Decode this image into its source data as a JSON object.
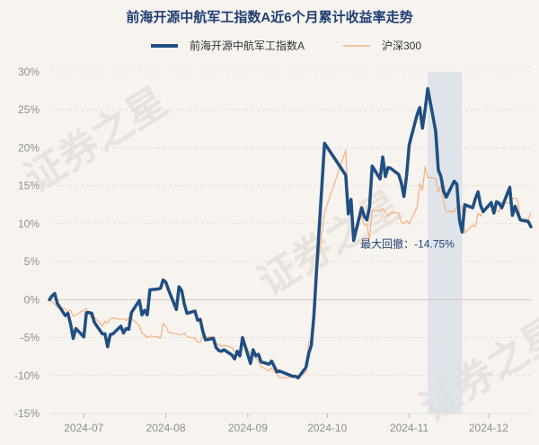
{
  "chart_data": {
    "type": "line",
    "title": "前海开源中航军工指数A近6个月累计收益率走势",
    "watermark": "证券之星",
    "colors": {
      "fund": "#1f4f82",
      "index": "#f4b183",
      "drawdown_band": "#d9e0e8",
      "grid": "#e6e0da",
      "zero_line": "#cfc8c0",
      "title": "#1f3f73",
      "tick": "#8f8f8f",
      "background": "#f7f3ef"
    },
    "legend": {
      "position": "top-center",
      "items": [
        "前海开源中航军工指数A",
        "沪深300"
      ]
    },
    "x_ticks": [
      "2024-07",
      "2024-08",
      "2024-09",
      "2024-10",
      "2024-11",
      "2024-12"
    ],
    "y_ticks": [
      "30%",
      "25%",
      "20%",
      "15%",
      "10%",
      "5%",
      "0%",
      "-5%",
      "-10%",
      "-15%"
    ],
    "ylim": [
      -15,
      30
    ],
    "y_unit": "%",
    "grid": "horizontal-dashed",
    "x_range": [
      "2024-06-18",
      "2024-12-17"
    ],
    "series": [
      {
        "name": "前海开源中航军工指数A",
        "points": [
          [
            "2024-06-18",
            0.0
          ],
          [
            "2024-06-19",
            0.5
          ],
          [
            "2024-06-20",
            0.8
          ],
          [
            "2024-06-21",
            -0.5
          ],
          [
            "2024-06-24",
            -2.1
          ],
          [
            "2024-06-25",
            -1.8
          ],
          [
            "2024-06-26",
            -3.2
          ],
          [
            "2024-06-27",
            -5.1
          ],
          [
            "2024-06-28",
            -3.8
          ],
          [
            "2024-07-01",
            -4.9
          ],
          [
            "2024-07-02",
            -1.7
          ],
          [
            "2024-07-03",
            -1.7
          ],
          [
            "2024-07-04",
            -1.8
          ],
          [
            "2024-07-05",
            -3.0
          ],
          [
            "2024-07-08",
            -4.5
          ],
          [
            "2024-07-09",
            -4.5
          ],
          [
            "2024-07-10",
            -6.2
          ],
          [
            "2024-07-11",
            -4.6
          ],
          [
            "2024-07-12",
            -4.5
          ],
          [
            "2024-07-15",
            -3.5
          ],
          [
            "2024-07-16",
            -4.4
          ],
          [
            "2024-07-17",
            -3.8
          ],
          [
            "2024-07-18",
            -3.9
          ],
          [
            "2024-07-19",
            -1.7
          ],
          [
            "2024-07-22",
            -0.1
          ],
          [
            "2024-07-23",
            -2.0
          ],
          [
            "2024-07-24",
            -1.4
          ],
          [
            "2024-07-25",
            -2.0
          ],
          [
            "2024-07-26",
            1.3
          ],
          [
            "2024-07-29",
            1.4
          ],
          [
            "2024-07-30",
            1.5
          ],
          [
            "2024-07-31",
            2.6
          ],
          [
            "2024-08-01",
            2.3
          ],
          [
            "2024-08-02",
            1.3
          ],
          [
            "2024-08-05",
            -1.3
          ],
          [
            "2024-08-06",
            1.7
          ],
          [
            "2024-08-07",
            1.2
          ],
          [
            "2024-08-08",
            -0.6
          ],
          [
            "2024-08-09",
            -1.8
          ],
          [
            "2024-08-12",
            -1.5
          ],
          [
            "2024-08-13",
            -2.7
          ],
          [
            "2024-08-14",
            -2.6
          ],
          [
            "2024-08-15",
            -4.2
          ],
          [
            "2024-08-16",
            -5.3
          ],
          [
            "2024-08-19",
            -5.1
          ],
          [
            "2024-08-20",
            -6.3
          ],
          [
            "2024-08-21",
            -6.7
          ],
          [
            "2024-08-22",
            -6.8
          ],
          [
            "2024-08-23",
            -6.6
          ],
          [
            "2024-08-26",
            -7.3
          ],
          [
            "2024-08-27",
            -7.8
          ],
          [
            "2024-08-28",
            -6.8
          ],
          [
            "2024-08-29",
            -7.4
          ],
          [
            "2024-08-30",
            -5.0
          ],
          [
            "2024-09-02",
            -8.4
          ],
          [
            "2024-09-03",
            -6.6
          ],
          [
            "2024-09-04",
            -7.4
          ],
          [
            "2024-09-05",
            -7.2
          ],
          [
            "2024-09-06",
            -8.2
          ],
          [
            "2024-09-09",
            -8.5
          ],
          [
            "2024-09-10",
            -8.1
          ],
          [
            "2024-09-11",
            -8.8
          ],
          [
            "2024-09-12",
            -9.5
          ],
          [
            "2024-09-13",
            -9.4
          ],
          [
            "2024-09-18",
            -10.1
          ],
          [
            "2024-09-19",
            -10.1
          ],
          [
            "2024-09-20",
            -10.3
          ],
          [
            "2024-09-23",
            -8.9
          ],
          [
            "2024-09-24",
            -7.1
          ],
          [
            "2024-09-25",
            -6.0
          ],
          [
            "2024-09-26",
            -2.0
          ],
          [
            "2024-09-27",
            4.0
          ],
          [
            "2024-09-30",
            20.6
          ],
          [
            "2024-10-08",
            16.4
          ],
          [
            "2024-10-09",
            11.3
          ],
          [
            "2024-10-10",
            13.2
          ],
          [
            "2024-10-11",
            7.8
          ],
          [
            "2024-10-14",
            12.1
          ],
          [
            "2024-10-15",
            11.0
          ],
          [
            "2024-10-16",
            10.5
          ],
          [
            "2024-10-17",
            12.2
          ],
          [
            "2024-10-18",
            17.6
          ],
          [
            "2024-10-21",
            15.9
          ],
          [
            "2024-10-22",
            18.8
          ],
          [
            "2024-10-23",
            16.2
          ],
          [
            "2024-10-24",
            17.4
          ],
          [
            "2024-10-25",
            17.3
          ],
          [
            "2024-10-28",
            16.5
          ],
          [
            "2024-10-29",
            15.4
          ],
          [
            "2024-10-30",
            13.6
          ],
          [
            "2024-10-31",
            16.3
          ],
          [
            "2024-11-01",
            20.4
          ],
          [
            "2024-11-04",
            24.4
          ],
          [
            "2024-11-05",
            25.3
          ],
          [
            "2024-11-06",
            22.6
          ],
          [
            "2024-11-07",
            25.0
          ],
          [
            "2024-11-08",
            27.8
          ],
          [
            "2024-11-11",
            22.2
          ],
          [
            "2024-11-12",
            17.1
          ],
          [
            "2024-11-13",
            16.2
          ],
          [
            "2024-11-14",
            14.3
          ],
          [
            "2024-11-15",
            13.5
          ],
          [
            "2024-11-18",
            15.6
          ],
          [
            "2024-11-19",
            15.2
          ],
          [
            "2024-11-20",
            10.5
          ],
          [
            "2024-11-21",
            8.9
          ],
          [
            "2024-11-22",
            12.5
          ],
          [
            "2024-11-25",
            12.1
          ],
          [
            "2024-11-26",
            13.3
          ],
          [
            "2024-11-27",
            14.2
          ],
          [
            "2024-11-28",
            12.4
          ],
          [
            "2024-11-29",
            11.6
          ],
          [
            "2024-12-02",
            12.8
          ],
          [
            "2024-12-03",
            11.4
          ],
          [
            "2024-12-04",
            12.9
          ],
          [
            "2024-12-05",
            12.7
          ],
          [
            "2024-12-06",
            12.1
          ],
          [
            "2024-12-09",
            14.8
          ],
          [
            "2024-12-10",
            11.1
          ],
          [
            "2024-12-11",
            12.3
          ],
          [
            "2024-12-12",
            11.4
          ],
          [
            "2024-12-13",
            10.5
          ],
          [
            "2024-12-16",
            10.3
          ],
          [
            "2024-12-17",
            9.6
          ]
        ]
      },
      {
        "name": "沪深300",
        "points": [
          [
            "2024-06-18",
            0.0
          ],
          [
            "2024-06-19",
            -0.3
          ],
          [
            "2024-06-20",
            -0.6
          ],
          [
            "2024-06-21",
            -1.0
          ],
          [
            "2024-06-24",
            -1.2
          ],
          [
            "2024-06-25",
            -1.6
          ],
          [
            "2024-06-26",
            -1.4
          ],
          [
            "2024-06-27",
            -2.2
          ],
          [
            "2024-06-28",
            -2.0
          ],
          [
            "2024-07-01",
            -1.4
          ],
          [
            "2024-07-02",
            -1.2
          ],
          [
            "2024-07-03",
            -1.8
          ],
          [
            "2024-07-04",
            -2.4
          ],
          [
            "2024-07-05",
            -2.3
          ],
          [
            "2024-07-08",
            -3.5
          ],
          [
            "2024-07-09",
            -2.8
          ],
          [
            "2024-07-10",
            -3.1
          ],
          [
            "2024-07-11",
            -2.5
          ],
          [
            "2024-07-12",
            -2.4
          ],
          [
            "2024-07-15",
            -2.6
          ],
          [
            "2024-07-16",
            -2.5
          ],
          [
            "2024-07-17",
            -2.8
          ],
          [
            "2024-07-18",
            -2.3
          ],
          [
            "2024-07-19",
            -2.5
          ],
          [
            "2024-07-22",
            -3.4
          ],
          [
            "2024-07-23",
            -4.4
          ],
          [
            "2024-07-24",
            -4.6
          ],
          [
            "2024-07-25",
            -5.0
          ],
          [
            "2024-07-26",
            -4.8
          ],
          [
            "2024-07-29",
            -4.9
          ],
          [
            "2024-07-30",
            -5.1
          ],
          [
            "2024-07-31",
            -3.1
          ],
          [
            "2024-08-01",
            -3.5
          ],
          [
            "2024-08-02",
            -4.3
          ],
          [
            "2024-08-05",
            -4.5
          ],
          [
            "2024-08-06",
            -4.6
          ],
          [
            "2024-08-07",
            -4.6
          ],
          [
            "2024-08-08",
            -4.4
          ],
          [
            "2024-08-09",
            -4.9
          ],
          [
            "2024-08-12",
            -5.1
          ],
          [
            "2024-08-13",
            -5.6
          ],
          [
            "2024-08-14",
            -5.6
          ],
          [
            "2024-08-15",
            -4.8
          ],
          [
            "2024-08-16",
            -4.9
          ],
          [
            "2024-08-19",
            -4.9
          ],
          [
            "2024-08-20",
            -5.8
          ],
          [
            "2024-08-21",
            -5.9
          ],
          [
            "2024-08-22",
            -6.2
          ],
          [
            "2024-08-23",
            -6.0
          ],
          [
            "2024-08-26",
            -6.3
          ],
          [
            "2024-08-27",
            -6.8
          ],
          [
            "2024-08-28",
            -6.9
          ],
          [
            "2024-08-29",
            -6.9
          ],
          [
            "2024-08-30",
            -5.7
          ],
          [
            "2024-09-02",
            -7.1
          ],
          [
            "2024-09-03",
            -7.2
          ],
          [
            "2024-09-04",
            -7.6
          ],
          [
            "2024-09-05",
            -8.1
          ],
          [
            "2024-09-06",
            -8.8
          ],
          [
            "2024-09-09",
            -9.4
          ],
          [
            "2024-09-10",
            -9.0
          ],
          [
            "2024-09-11",
            -9.5
          ],
          [
            "2024-09-12",
            -9.8
          ],
          [
            "2024-09-13",
            -10.3
          ],
          [
            "2024-09-18",
            -10.2
          ],
          [
            "2024-09-19",
            -9.9
          ],
          [
            "2024-09-20",
            -10.1
          ],
          [
            "2024-09-23",
            -9.6
          ],
          [
            "2024-09-24",
            -5.6
          ],
          [
            "2024-09-25",
            -5.3
          ],
          [
            "2024-09-26",
            -1.5
          ],
          [
            "2024-09-27",
            3.1
          ],
          [
            "2024-09-30",
            11.5
          ],
          [
            "2024-10-08",
            19.7
          ],
          [
            "2024-10-09",
            12.2
          ],
          [
            "2024-10-10",
            11.3
          ],
          [
            "2024-10-11",
            8.9
          ],
          [
            "2024-10-14",
            11.1
          ],
          [
            "2024-10-15",
            9.8
          ],
          [
            "2024-10-16",
            10.0
          ],
          [
            "2024-10-17",
            8.0
          ],
          [
            "2024-10-18",
            11.7
          ],
          [
            "2024-10-21",
            11.7
          ],
          [
            "2024-10-22",
            12.0
          ],
          [
            "2024-10-23",
            11.6
          ],
          [
            "2024-10-24",
            11.0
          ],
          [
            "2024-10-25",
            11.5
          ],
          [
            "2024-10-28",
            11.4
          ],
          [
            "2024-10-29",
            10.2
          ],
          [
            "2024-10-30",
            10.0
          ],
          [
            "2024-10-31",
            10.4
          ],
          [
            "2024-11-01",
            10.0
          ],
          [
            "2024-11-04",
            12.2
          ],
          [
            "2024-11-05",
            15.3
          ],
          [
            "2024-11-06",
            14.4
          ],
          [
            "2024-11-07",
            17.5
          ],
          [
            "2024-11-08",
            16.1
          ],
          [
            "2024-11-11",
            16.0
          ],
          [
            "2024-11-12",
            14.2
          ],
          [
            "2024-11-13",
            15.1
          ],
          [
            "2024-11-14",
            13.0
          ],
          [
            "2024-11-15",
            11.6
          ],
          [
            "2024-11-18",
            11.6
          ],
          [
            "2024-11-19",
            12.2
          ],
          [
            "2024-11-20",
            12.4
          ],
          [
            "2024-11-21",
            12.2
          ],
          [
            "2024-11-22",
            8.8
          ],
          [
            "2024-11-25",
            9.8
          ],
          [
            "2024-11-26",
            9.6
          ],
          [
            "2024-11-27",
            11.4
          ],
          [
            "2024-11-28",
            11.0
          ],
          [
            "2024-11-29",
            11.9
          ],
          [
            "2024-12-02",
            12.2
          ],
          [
            "2024-12-03",
            12.2
          ],
          [
            "2024-12-04",
            11.7
          ],
          [
            "2024-12-05",
            11.6
          ],
          [
            "2024-12-06",
            12.8
          ],
          [
            "2024-12-09",
            12.7
          ],
          [
            "2024-12-10",
            13.3
          ],
          [
            "2024-12-11",
            13.4
          ],
          [
            "2024-12-12",
            13.1
          ],
          [
            "2024-12-13",
            10.6
          ],
          [
            "2024-12-16",
            10.6
          ],
          [
            "2024-12-17",
            11.4
          ]
        ]
      }
    ],
    "annotation": {
      "label": "最大回撤：-14.75%",
      "band_start": "2024-11-08",
      "band_end": "2024-11-21"
    }
  }
}
